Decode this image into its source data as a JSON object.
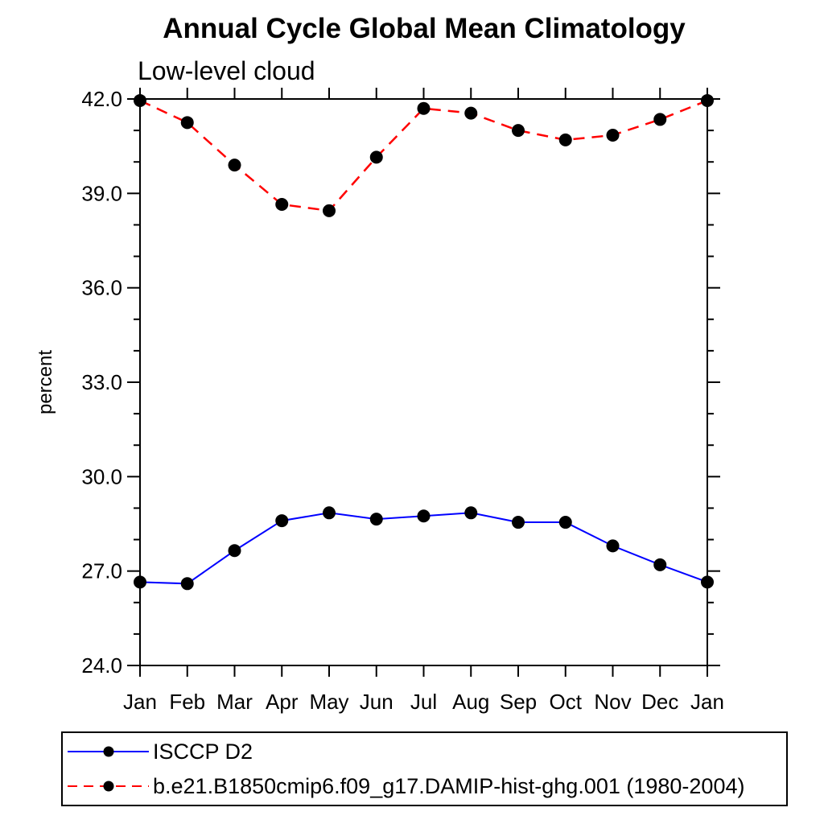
{
  "chart_data": {
    "type": "line",
    "title": "Annual Cycle Global Mean Climatology",
    "subtitle": "Low-level cloud",
    "ylabel": "percent",
    "xlabel": "",
    "categories": [
      "Jan",
      "Feb",
      "Mar",
      "Apr",
      "May",
      "Jun",
      "Jul",
      "Aug",
      "Sep",
      "Oct",
      "Nov",
      "Dec",
      "Jan"
    ],
    "ylim": [
      24.0,
      42.0
    ],
    "ytick_major_interval": 3.0,
    "ytick_minor_interval": 1.0,
    "ytick_labels": [
      "24.0",
      "27.0",
      "30.0",
      "33.0",
      "36.0",
      "39.0",
      "42.0"
    ],
    "grid": false,
    "axis_color": "#000000",
    "legend_position": "bottom-left-boxed",
    "series": [
      {
        "name": "ISCCP D2",
        "color": "#0000ff",
        "line_style": "solid",
        "marker": "filled-circle",
        "marker_color": "#000000",
        "values": [
          26.65,
          26.6,
          27.65,
          28.6,
          28.85,
          28.65,
          28.75,
          28.85,
          28.55,
          28.55,
          27.8,
          27.2,
          26.65
        ]
      },
      {
        "name": "b.e21.B1850cmip6.f09_g17.DAMIP-hist-ghg.001 (1980-2004)",
        "color": "#ff0000",
        "line_style": "dashed",
        "marker": "filled-circle",
        "marker_color": "#000000",
        "values": [
          41.95,
          41.25,
          39.9,
          38.65,
          38.45,
          40.15,
          41.7,
          41.55,
          41.0,
          40.7,
          40.85,
          41.35,
          41.95
        ]
      }
    ]
  }
}
